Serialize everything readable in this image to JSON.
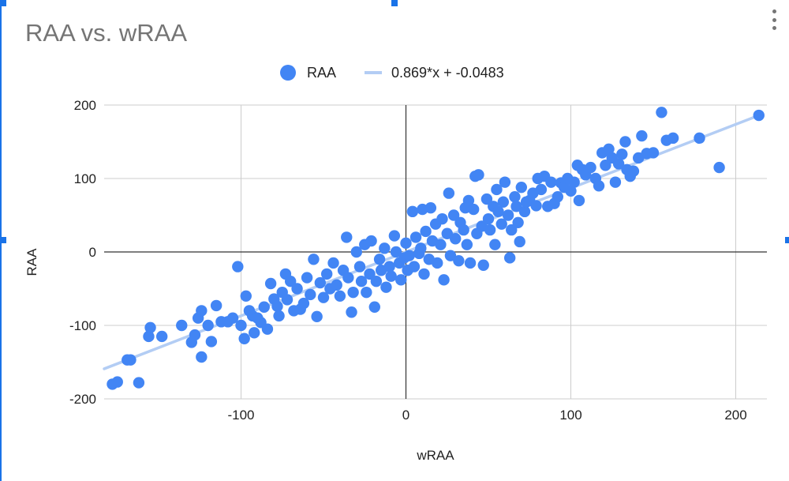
{
  "chart_data": {
    "type": "scatter",
    "title": "RAA vs. wRAA",
    "xlabel": "wRAA",
    "ylabel": "RAA",
    "xlim": [
      -183,
      220
    ],
    "ylim": [
      -200,
      200
    ],
    "x_ticks": [
      -100,
      0,
      100,
      200
    ],
    "y_ticks": [
      -200,
      -100,
      0,
      100,
      200
    ],
    "x_tick_labels": [
      "-100",
      "0",
      "100",
      "200"
    ],
    "y_tick_labels": [
      "-200",
      "-100",
      "0",
      "100",
      "200"
    ],
    "grid": true,
    "legend_position": "top",
    "legend": [
      {
        "label": "RAA",
        "kind": "point"
      },
      {
        "label": "0.869*x + -0.0483",
        "kind": "line"
      }
    ],
    "trendline": {
      "slope": 0.869,
      "intercept": -0.0483,
      "label": "0.869*x + -0.0483"
    },
    "series": [
      {
        "name": "RAA",
        "points": [
          [
            -178,
            -180
          ],
          [
            -175,
            -177
          ],
          [
            -162,
            -178
          ],
          [
            -167,
            -147
          ],
          [
            -169,
            -147
          ],
          [
            -156,
            -115
          ],
          [
            -155,
            -103
          ],
          [
            -148,
            -115
          ],
          [
            -136,
            -100
          ],
          [
            -130,
            -123
          ],
          [
            -128,
            -113
          ],
          [
            -126,
            -90
          ],
          [
            -124,
            -80
          ],
          [
            -124,
            -143
          ],
          [
            -120,
            -100
          ],
          [
            -118,
            -122
          ],
          [
            -115,
            -73
          ],
          [
            -112,
            -95
          ],
          [
            -108,
            -95
          ],
          [
            -105,
            -90
          ],
          [
            -102,
            -20
          ],
          [
            -100,
            -100
          ],
          [
            -98,
            -118
          ],
          [
            -97,
            -60
          ],
          [
            -95,
            -80
          ],
          [
            -93,
            -87
          ],
          [
            -92,
            -110
          ],
          [
            -90,
            -90
          ],
          [
            -88,
            -96
          ],
          [
            -86,
            -75
          ],
          [
            -84,
            -105
          ],
          [
            -82,
            -43
          ],
          [
            -80,
            -64
          ],
          [
            -78,
            -74
          ],
          [
            -77,
            -87
          ],
          [
            -75,
            -55
          ],
          [
            -73,
            -30
          ],
          [
            -72,
            -65
          ],
          [
            -70,
            -40
          ],
          [
            -68,
            -80
          ],
          [
            -66,
            -50
          ],
          [
            -64,
            -78
          ],
          [
            -62,
            -70
          ],
          [
            -60,
            -35
          ],
          [
            -58,
            -58
          ],
          [
            -56,
            -10
          ],
          [
            -54,
            -88
          ],
          [
            -52,
            -42
          ],
          [
            -50,
            -62
          ],
          [
            -48,
            -30
          ],
          [
            -46,
            -50
          ],
          [
            -44,
            -15
          ],
          [
            -42,
            -45
          ],
          [
            -40,
            -60
          ],
          [
            -38,
            -25
          ],
          [
            -36,
            20
          ],
          [
            -35,
            -35
          ],
          [
            -33,
            -82
          ],
          [
            -32,
            -55
          ],
          [
            -30,
            0
          ],
          [
            -28,
            -20
          ],
          [
            -27,
            -40
          ],
          [
            -25,
            10
          ],
          [
            -24,
            -55
          ],
          [
            -22,
            -30
          ],
          [
            -21,
            15
          ],
          [
            -19,
            -75
          ],
          [
            -18,
            -40
          ],
          [
            -16,
            -10
          ],
          [
            -15,
            -25
          ],
          [
            -13,
            5
          ],
          [
            -12,
            -48
          ],
          [
            -10,
            -20
          ],
          [
            -9,
            -33
          ],
          [
            -7,
            22
          ],
          [
            -6,
            0
          ],
          [
            -4,
            -15
          ],
          [
            -3,
            -38
          ],
          [
            -1,
            -8
          ],
          [
            0,
            12
          ],
          [
            1,
            -25
          ],
          [
            2,
            -5
          ],
          [
            4,
            55
          ],
          [
            5,
            -20
          ],
          [
            6,
            20
          ],
          [
            8,
            -2
          ],
          [
            9,
            5
          ],
          [
            10,
            58
          ],
          [
            11,
            -30
          ],
          [
            12,
            28
          ],
          [
            14,
            -10
          ],
          [
            15,
            60
          ],
          [
            16,
            15
          ],
          [
            18,
            38
          ],
          [
            19,
            -15
          ],
          [
            21,
            10
          ],
          [
            22,
            45
          ],
          [
            23,
            -38
          ],
          [
            25,
            25
          ],
          [
            26,
            80
          ],
          [
            27,
            -5
          ],
          [
            29,
            50
          ],
          [
            30,
            18
          ],
          [
            32,
            -12
          ],
          [
            33,
            40
          ],
          [
            35,
            30
          ],
          [
            36,
            60
          ],
          [
            37,
            10
          ],
          [
            38,
            70
          ],
          [
            39,
            -15
          ],
          [
            41,
            58
          ],
          [
            42,
            103
          ],
          [
            43,
            25
          ],
          [
            44,
            105
          ],
          [
            46,
            35
          ],
          [
            47,
            -18
          ],
          [
            49,
            72
          ],
          [
            50,
            45
          ],
          [
            51,
            30
          ],
          [
            53,
            62
          ],
          [
            54,
            10
          ],
          [
            55,
            85
          ],
          [
            56,
            55
          ],
          [
            58,
            38
          ],
          [
            59,
            68
          ],
          [
            60,
            95
          ],
          [
            62,
            50
          ],
          [
            63,
            -8
          ],
          [
            64,
            30
          ],
          [
            66,
            75
          ],
          [
            67,
            62
          ],
          [
            68,
            40
          ],
          [
            69,
            14
          ],
          [
            70,
            88
          ],
          [
            72,
            55
          ],
          [
            73,
            68
          ],
          [
            75,
            70
          ],
          [
            77,
            80
          ],
          [
            79,
            63
          ],
          [
            80,
            100
          ],
          [
            82,
            85
          ],
          [
            84,
            103
          ],
          [
            86,
            62
          ],
          [
            88,
            95
          ],
          [
            90,
            66
          ],
          [
            92,
            75
          ],
          [
            94,
            94
          ],
          [
            96,
            88
          ],
          [
            98,
            100
          ],
          [
            100,
            83
          ],
          [
            102,
            95
          ],
          [
            104,
            118
          ],
          [
            105,
            70
          ],
          [
            107,
            112
          ],
          [
            109,
            105
          ],
          [
            112,
            115
          ],
          [
            115,
            100
          ],
          [
            117,
            90
          ],
          [
            119,
            135
          ],
          [
            121,
            118
          ],
          [
            123,
            140
          ],
          [
            125,
            128
          ],
          [
            127,
            95
          ],
          [
            129,
            120
          ],
          [
            131,
            133
          ],
          [
            133,
            150
          ],
          [
            134,
            112
          ],
          [
            136,
            103
          ],
          [
            138,
            110
          ],
          [
            141,
            128
          ],
          [
            143,
            158
          ],
          [
            146,
            134
          ],
          [
            150,
            135
          ],
          [
            155,
            190
          ],
          [
            158,
            152
          ],
          [
            162,
            155
          ],
          [
            178,
            155
          ],
          [
            190,
            115
          ],
          [
            214,
            186
          ]
        ]
      }
    ]
  },
  "colors": {
    "point": "#4285f4",
    "trendline": "#b3cdf4",
    "grid": "#cccccc",
    "zero_axis": "#333333",
    "title": "#757575"
  },
  "menu_icon": "more-vert-icon"
}
